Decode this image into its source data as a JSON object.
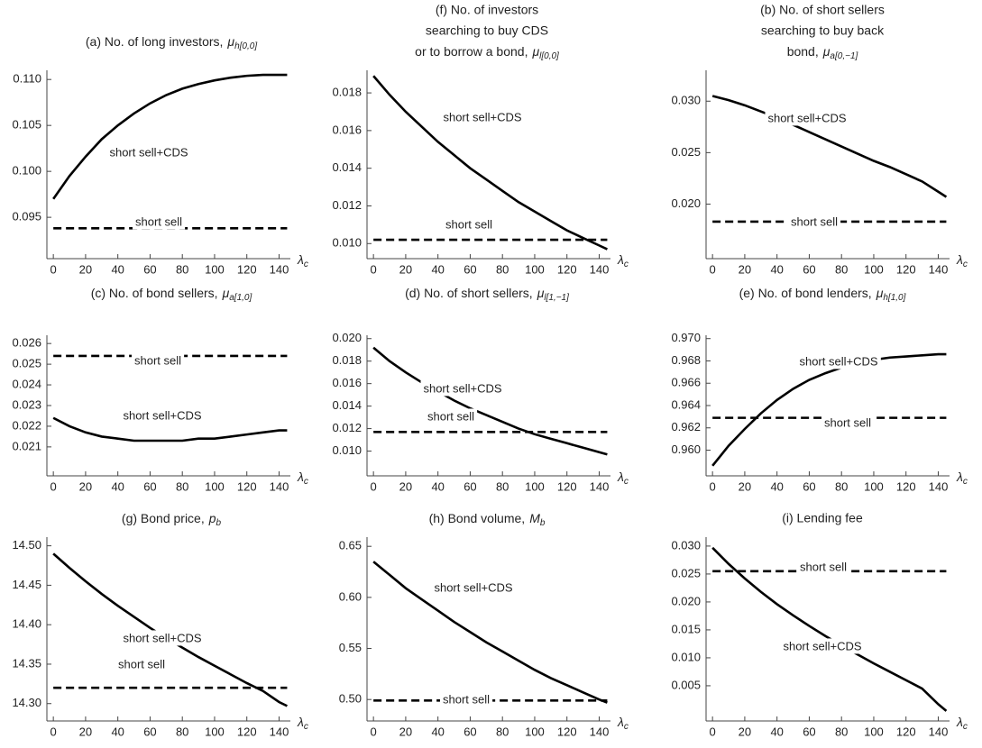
{
  "chart_data": [
    {
      "type": "line",
      "title_lines": [
        "(a) No. of long investors,"
      ],
      "symbol": "μ",
      "subscript": "h[0,0]",
      "xlabel": "λ",
      "xlabel_sub": "c",
      "x": [
        0,
        10,
        20,
        30,
        40,
        50,
        60,
        70,
        80,
        90,
        100,
        110,
        120,
        130,
        140,
        145
      ],
      "series": [
        {
          "name": "short sell+CDS",
          "color": "#000000",
          "style": "solid",
          "values": [
            0.097,
            0.0995,
            0.1016,
            0.1035,
            0.105,
            0.1063,
            0.1074,
            0.1083,
            0.109,
            0.1095,
            0.1099,
            0.1102,
            0.1104,
            0.1105,
            0.1105,
            0.1105
          ]
        },
        {
          "name": "short sell",
          "color": "#000000",
          "style": "dashed",
          "values": [
            0.0938,
            0.0938,
            0.0938,
            0.0938,
            0.0938,
            0.0938,
            0.0938,
            0.0938,
            0.0938,
            0.0938,
            0.0938,
            0.0938,
            0.0938,
            0.0938,
            0.0938,
            0.0938
          ]
        }
      ],
      "xlim": [
        -4,
        147
      ],
      "ylim": [
        0.0905,
        0.111
      ],
      "xticks": [
        0,
        20,
        40,
        60,
        80,
        100,
        120,
        140
      ],
      "yticks": [
        0.095,
        {
          "value": 0.1,
          "label": "0.100"
        },
        0.105,
        {
          "value": 0.11,
          "label": "0.110"
        }
      ]
    },
    {
      "type": "line",
      "title_lines": [
        "(f) No. of investors",
        "searching to buy CDS",
        "or to borrow a bond,"
      ],
      "symbol": "μ",
      "subscript": "l[0,0]",
      "xlabel": "λ",
      "xlabel_sub": "c",
      "x": [
        0,
        10,
        20,
        30,
        40,
        50,
        60,
        70,
        80,
        90,
        100,
        110,
        120,
        130,
        140,
        145
      ],
      "series": [
        {
          "name": "short sell+CDS",
          "color": "#000000",
          "style": "solid",
          "values": [
            0.0189,
            0.0179,
            0.017,
            0.0162,
            0.0154,
            0.0147,
            0.014,
            0.0134,
            0.0128,
            0.0122,
            0.0117,
            0.0112,
            0.0107,
            0.0103,
            0.0099,
            0.0097
          ]
        },
        {
          "name": "short sell",
          "color": "#000000",
          "style": "dashed",
          "values": [
            0.0102,
            0.0102,
            0.0102,
            0.0102,
            0.0102,
            0.0102,
            0.0102,
            0.0102,
            0.0102,
            0.0102,
            0.0102,
            0.0102,
            0.0102,
            0.0102,
            0.0102,
            0.0102
          ]
        }
      ],
      "xlim": [
        -4,
        147
      ],
      "ylim": [
        0.0092,
        0.0192
      ],
      "xticks": [
        0,
        20,
        40,
        60,
        80,
        100,
        120,
        140
      ],
      "yticks": [
        {
          "value": 0.01,
          "label": "0.010"
        },
        0.012,
        0.014,
        0.016,
        0.018
      ]
    },
    {
      "type": "line",
      "title_lines": [
        "(b) No. of short sellers",
        "searching to buy back",
        "bond,"
      ],
      "symbol": "μ",
      "subscript": "a[0,−1]",
      "xlabel": "λ",
      "xlabel_sub": "c",
      "x": [
        0,
        10,
        20,
        30,
        40,
        50,
        60,
        70,
        80,
        90,
        100,
        110,
        120,
        130,
        140,
        145
      ],
      "series": [
        {
          "name": "short sell+CDS",
          "color": "#000000",
          "style": "solid",
          "values": [
            0.0305,
            0.0301,
            0.0296,
            0.029,
            0.0284,
            0.0277,
            0.027,
            0.0263,
            0.0256,
            0.0249,
            0.0242,
            0.0236,
            0.0229,
            0.0222,
            0.0212,
            0.0207
          ]
        },
        {
          "name": "short sell",
          "color": "#000000",
          "style": "dashed",
          "values": [
            0.0183,
            0.0183,
            0.0183,
            0.0183,
            0.0183,
            0.0183,
            0.0183,
            0.0183,
            0.0183,
            0.0183,
            0.0183,
            0.0183,
            0.0183,
            0.0183,
            0.0183,
            0.0183
          ]
        }
      ],
      "xlim": [
        -4,
        147
      ],
      "ylim": [
        0.0147,
        0.033
      ],
      "xticks": [
        0,
        20,
        40,
        60,
        80,
        100,
        120,
        140
      ],
      "yticks": [
        {
          "value": 0.02,
          "label": "0.020"
        },
        0.025,
        {
          "value": 0.03,
          "label": "0.030"
        }
      ]
    },
    {
      "type": "line",
      "title_lines": [
        "(c) No. of bond sellers,"
      ],
      "symbol": "μ",
      "subscript": "a[1,0]",
      "xlabel": "λ",
      "xlabel_sub": "c",
      "x": [
        0,
        10,
        20,
        30,
        40,
        50,
        60,
        70,
        80,
        90,
        100,
        110,
        120,
        130,
        140,
        145
      ],
      "series": [
        {
          "name": "short sell+CDS",
          "color": "#000000",
          "style": "solid",
          "values": [
            0.0224,
            0.022,
            0.0217,
            0.0215,
            0.0214,
            0.0213,
            0.0213,
            0.0213,
            0.0213,
            0.0214,
            0.0214,
            0.0215,
            0.0216,
            0.0217,
            0.0218,
            0.0218
          ]
        },
        {
          "name": "short sell",
          "color": "#000000",
          "style": "dashed",
          "values": [
            0.0254,
            0.0254,
            0.0254,
            0.0254,
            0.0254,
            0.0254,
            0.0254,
            0.0254,
            0.0254,
            0.0254,
            0.0254,
            0.0254,
            0.0254,
            0.0254,
            0.0254,
            0.0254
          ]
        }
      ],
      "xlim": [
        -4,
        147
      ],
      "ylim": [
        0.0196,
        0.0264
      ],
      "xticks": [
        0,
        20,
        40,
        60,
        80,
        100,
        120,
        140
      ],
      "yticks": [
        0.021,
        0.022,
        0.023,
        0.024,
        0.025,
        0.026
      ]
    },
    {
      "type": "line",
      "title_lines": [
        "(d) No. of short sellers,"
      ],
      "symbol": "μ",
      "subscript": "l[1,−1]",
      "xlabel": "λ",
      "xlabel_sub": "c",
      "x": [
        0,
        10,
        20,
        30,
        40,
        50,
        60,
        70,
        80,
        90,
        100,
        110,
        120,
        130,
        140,
        145
      ],
      "series": [
        {
          "name": "short sell+CDS",
          "color": "#000000",
          "style": "solid",
          "values": [
            0.0192,
            0.018,
            0.017,
            0.0161,
            0.0153,
            0.0145,
            0.0138,
            0.0132,
            0.0126,
            0.012,
            0.0115,
            0.0111,
            0.0107,
            0.0103,
            0.0099,
            0.0097
          ]
        },
        {
          "name": "short sell",
          "color": "#000000",
          "style": "dashed",
          "values": [
            0.0117,
            0.0117,
            0.0117,
            0.0117,
            0.0117,
            0.0117,
            0.0117,
            0.0117,
            0.0117,
            0.0117,
            0.0117,
            0.0117,
            0.0117,
            0.0117,
            0.0117,
            0.0117
          ]
        }
      ],
      "xlim": [
        -4,
        147
      ],
      "ylim": [
        0.0078,
        0.0203
      ],
      "xticks": [
        0,
        20,
        40,
        60,
        80,
        100,
        120,
        140
      ],
      "yticks": [
        {
          "value": 0.01,
          "label": "0.010"
        },
        0.012,
        0.014,
        0.016,
        0.018,
        {
          "value": 0.02,
          "label": "0.020"
        }
      ]
    },
    {
      "type": "line",
      "title_lines": [
        "(e) No. of bond lenders,"
      ],
      "symbol": "μ",
      "subscript": "h[1,0]",
      "xlabel": "λ",
      "xlabel_sub": "c",
      "x": [
        0,
        10,
        20,
        30,
        40,
        50,
        60,
        70,
        80,
        90,
        100,
        110,
        120,
        130,
        140,
        145
      ],
      "series": [
        {
          "name": "short sell+CDS",
          "color": "#000000",
          "style": "solid",
          "values": [
            0.9586,
            0.9604,
            0.9619,
            0.9633,
            0.9645,
            0.9655,
            0.9663,
            0.9669,
            0.9674,
            0.9678,
            0.9681,
            0.9683,
            0.9684,
            0.9685,
            0.9686,
            0.9686
          ]
        },
        {
          "name": "short sell",
          "color": "#000000",
          "style": "dashed",
          "values": [
            0.9629,
            0.9629,
            0.9629,
            0.9629,
            0.9629,
            0.9629,
            0.9629,
            0.9629,
            0.9629,
            0.9629,
            0.9629,
            0.9629,
            0.9629,
            0.9629,
            0.9629,
            0.9629
          ]
        }
      ],
      "xlim": [
        -4,
        147
      ],
      "ylim": [
        0.9577,
        0.9703
      ],
      "xticks": [
        0,
        20,
        40,
        60,
        80,
        100,
        120,
        140
      ],
      "yticks": [
        {
          "value": 0.96,
          "label": "0.960"
        },
        0.962,
        0.964,
        0.966,
        0.968,
        {
          "value": 0.97,
          "label": "0.970"
        }
      ]
    },
    {
      "type": "line",
      "title_lines": [
        "(g) Bond price,"
      ],
      "symbol": "p",
      "subscript": "b",
      "xlabel": "λ",
      "xlabel_sub": "c",
      "x": [
        0,
        10,
        20,
        30,
        40,
        50,
        60,
        70,
        80,
        90,
        100,
        110,
        120,
        130,
        140,
        145
      ],
      "series": [
        {
          "name": "short sell+CDS",
          "color": "#000000",
          "style": "solid",
          "values": [
            14.49,
            14.472,
            14.455,
            14.439,
            14.424,
            14.41,
            14.396,
            14.383,
            14.371,
            14.359,
            14.348,
            14.337,
            14.326,
            14.316,
            14.302,
            14.297
          ]
        },
        {
          "name": "short sell",
          "color": "#000000",
          "style": "dashed",
          "values": [
            14.32,
            14.32,
            14.32,
            14.32,
            14.32,
            14.32,
            14.32,
            14.32,
            14.32,
            14.32,
            14.32,
            14.32,
            14.32,
            14.32,
            14.32,
            14.32
          ]
        }
      ],
      "xlim": [
        -4,
        147
      ],
      "ylim": [
        14.278,
        14.511
      ],
      "xticks": [
        0,
        20,
        40,
        60,
        80,
        100,
        120,
        140
      ],
      "yticks": [
        {
          "value": 14.3,
          "label": "14.30"
        },
        14.35,
        {
          "value": 14.4,
          "label": "14.40"
        },
        14.45,
        {
          "value": 14.5,
          "label": "14.50"
        }
      ]
    },
    {
      "type": "line",
      "title_lines": [
        "(h) Bond volume,"
      ],
      "symbol": "M",
      "subscript": "b",
      "xlabel": "λ",
      "xlabel_sub": "c",
      "x": [
        0,
        10,
        20,
        30,
        40,
        50,
        60,
        70,
        80,
        90,
        100,
        110,
        120,
        130,
        140,
        145
      ],
      "series": [
        {
          "name": "short sell+CDS",
          "color": "#000000",
          "style": "solid",
          "values": [
            0.635,
            0.622,
            0.609,
            0.598,
            0.587,
            0.576,
            0.566,
            0.556,
            0.547,
            0.538,
            0.529,
            0.521,
            0.514,
            0.507,
            0.5,
            0.497
          ]
        },
        {
          "name": "short sell",
          "color": "#000000",
          "style": "dashed",
          "values": [
            0.499,
            0.499,
            0.499,
            0.499,
            0.499,
            0.499,
            0.499,
            0.499,
            0.499,
            0.499,
            0.499,
            0.499,
            0.499,
            0.499,
            0.499,
            0.499
          ]
        }
      ],
      "xlim": [
        -4,
        147
      ],
      "ylim": [
        0.479,
        0.659
      ],
      "xticks": [
        0,
        20,
        40,
        60,
        80,
        100,
        120,
        140
      ],
      "yticks": [
        {
          "value": 0.5,
          "label": "0.50"
        },
        0.55,
        {
          "value": 0.6,
          "label": "0.60"
        },
        0.65
      ]
    },
    {
      "type": "line",
      "title_lines": [
        "(i) Lending fee"
      ],
      "xlabel": "λ",
      "xlabel_sub": "c",
      "x": [
        0,
        10,
        20,
        30,
        40,
        50,
        60,
        70,
        80,
        90,
        100,
        110,
        120,
        130,
        140,
        145
      ],
      "series": [
        {
          "name": "short sell+CDS",
          "color": "#000000",
          "style": "solid",
          "values": [
            0.0297,
            0.0268,
            0.0242,
            0.0218,
            0.0196,
            0.0176,
            0.0157,
            0.0139,
            0.0122,
            0.0106,
            0.009,
            0.0075,
            0.006,
            0.0045,
            0.0017,
            0.0005
          ]
        },
        {
          "name": "short sell",
          "color": "#000000",
          "style": "dashed",
          "values": [
            0.0255,
            0.0255,
            0.0255,
            0.0255,
            0.0255,
            0.0255,
            0.0255,
            0.0255,
            0.0255,
            0.0255,
            0.0255,
            0.0255,
            0.0255,
            0.0255,
            0.0255,
            0.0255
          ]
        }
      ],
      "xlim": [
        -4,
        147
      ],
      "ylim": [
        -0.0013,
        0.0316
      ],
      "xticks": [
        0,
        20,
        40,
        60,
        80,
        100,
        120,
        140
      ],
      "yticks": [
        0.005,
        {
          "value": 0.01,
          "label": "0.010"
        },
        0.015,
        {
          "value": 0.02,
          "label": "0.020"
        },
        0.025,
        {
          "value": 0.03,
          "label": "0.030"
        }
      ]
    }
  ]
}
